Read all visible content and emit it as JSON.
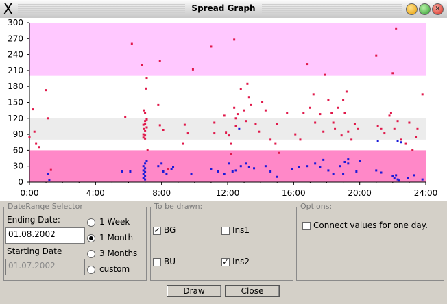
{
  "window": {
    "title": "Spread Graph",
    "logo": "X",
    "controls": [
      "minimize-icon",
      "maximize-icon",
      "close-icon"
    ]
  },
  "chart_data": {
    "type": "scatter",
    "title": "",
    "xlabel": "",
    "ylabel": "",
    "xlim": [
      0,
      24
    ],
    "ylim": [
      0,
      300
    ],
    "x_ticks": [
      "0:00",
      "4:00",
      "8:00",
      "12:00",
      "16:00",
      "20:00",
      "24:00"
    ],
    "y_ticks": [
      "0",
      "30",
      "60",
      "90",
      "120",
      "150",
      "180",
      "210",
      "240",
      "270",
      "300"
    ],
    "bands": [
      {
        "from": 200,
        "to": 300,
        "color": "#ffc8ff"
      },
      {
        "from": 80,
        "to": 120,
        "color": "#ececec"
      },
      {
        "from": 0,
        "to": 60,
        "color": "#ff88c8"
      }
    ],
    "series": [
      {
        "color": "#e0184a",
        "points": [
          [
            0.0,
            85
          ],
          [
            0.2,
            137
          ],
          [
            0.3,
            95
          ],
          [
            0.4,
            72
          ],
          [
            0.6,
            66
          ],
          [
            1.0,
            173
          ],
          [
            1.1,
            120
          ],
          [
            1.3,
            23
          ],
          [
            5.8,
            123
          ],
          [
            6.2,
            260
          ],
          [
            6.8,
            220
          ],
          [
            6.9,
            108
          ],
          [
            6.9,
            90
          ],
          [
            6.9,
            84
          ],
          [
            6.95,
            100
          ],
          [
            6.95,
            135
          ],
          [
            7.0,
            130
          ],
          [
            7.0,
            115
          ],
          [
            7.0,
            110
          ],
          [
            7.0,
            96
          ],
          [
            7.0,
            88
          ],
          [
            7.0,
            82
          ],
          [
            7.05,
            176
          ],
          [
            7.1,
            195
          ],
          [
            7.1,
            118
          ],
          [
            7.1,
            103
          ],
          [
            7.15,
            60
          ],
          [
            7.8,
            145
          ],
          [
            7.9,
            228
          ],
          [
            7.9,
            107
          ],
          [
            8.1,
            98
          ],
          [
            8.4,
            25
          ],
          [
            9.3,
            72
          ],
          [
            9.4,
            108
          ],
          [
            9.6,
            92
          ],
          [
            9.9,
            212
          ],
          [
            11.0,
            255
          ],
          [
            11.2,
            112
          ],
          [
            11.2,
            92
          ],
          [
            11.8,
            125
          ],
          [
            11.9,
            93
          ],
          [
            12.1,
            88
          ],
          [
            12.2,
            72
          ],
          [
            12.2,
            53
          ],
          [
            12.4,
            268
          ],
          [
            12.4,
            140
          ],
          [
            12.5,
            120
          ],
          [
            12.5,
            105
          ],
          [
            12.6,
            128
          ],
          [
            12.8,
            175
          ],
          [
            13.0,
            135
          ],
          [
            13.1,
            115
          ],
          [
            13.2,
            185
          ],
          [
            13.3,
            160
          ],
          [
            13.4,
            145
          ],
          [
            13.7,
            110
          ],
          [
            13.9,
            95
          ],
          [
            14.1,
            150
          ],
          [
            14.3,
            135
          ],
          [
            14.6,
            80
          ],
          [
            14.9,
            72
          ],
          [
            15.0,
            110
          ],
          [
            15.1,
            55
          ],
          [
            15.6,
            130
          ],
          [
            16.1,
            90
          ],
          [
            16.4,
            80
          ],
          [
            16.6,
            130
          ],
          [
            16.8,
            222
          ],
          [
            17.0,
            140
          ],
          [
            17.2,
            165
          ],
          [
            17.3,
            112
          ],
          [
            17.6,
            128
          ],
          [
            17.8,
            95
          ],
          [
            17.9,
            202
          ],
          [
            18.1,
            155
          ],
          [
            18.3,
            130
          ],
          [
            18.4,
            112
          ],
          [
            18.5,
            100
          ],
          [
            18.7,
            140
          ],
          [
            18.9,
            88
          ],
          [
            19.0,
            155
          ],
          [
            19.1,
            130
          ],
          [
            19.2,
            170
          ],
          [
            19.3,
            95
          ],
          [
            19.5,
            80
          ],
          [
            19.7,
            110
          ],
          [
            19.9,
            100
          ],
          [
            21.0,
            238
          ],
          [
            21.1,
            105
          ],
          [
            21.3,
            100
          ],
          [
            21.5,
            92
          ],
          [
            21.8,
            125
          ],
          [
            21.9,
            130
          ],
          [
            22.0,
            205
          ],
          [
            22.1,
            100
          ],
          [
            22.2,
            288
          ],
          [
            22.3,
            115
          ],
          [
            22.5,
            80
          ],
          [
            22.8,
            72
          ],
          [
            23.0,
            112
          ],
          [
            23.2,
            60
          ],
          [
            23.4,
            85
          ],
          [
            23.5,
            100
          ],
          [
            23.8,
            165
          ]
        ]
      },
      {
        "color": "#1a1ad8",
        "points": [
          [
            1.1,
            15
          ],
          [
            1.2,
            4
          ],
          [
            5.6,
            20
          ],
          [
            6.1,
            20
          ],
          [
            6.9,
            30
          ],
          [
            6.9,
            22
          ],
          [
            6.9,
            15
          ],
          [
            6.9,
            8
          ],
          [
            7.0,
            35
          ],
          [
            7.0,
            26
          ],
          [
            7.0,
            19
          ],
          [
            7.0,
            12
          ],
          [
            7.0,
            5
          ],
          [
            7.1,
            40
          ],
          [
            7.8,
            30
          ],
          [
            8.0,
            35
          ],
          [
            8.1,
            20
          ],
          [
            8.3,
            15
          ],
          [
            8.6,
            25
          ],
          [
            8.7,
            28
          ],
          [
            9.8,
            15
          ],
          [
            11.0,
            25
          ],
          [
            11.4,
            20
          ],
          [
            11.8,
            15
          ],
          [
            12.1,
            35
          ],
          [
            12.3,
            20
          ],
          [
            12.5,
            22
          ],
          [
            12.8,
            30
          ],
          [
            13.1,
            35
          ],
          [
            13.3,
            28
          ],
          [
            13.6,
            26
          ],
          [
            14.3,
            30
          ],
          [
            14.6,
            20
          ],
          [
            15.0,
            10
          ],
          [
            15.9,
            25
          ],
          [
            16.3,
            28
          ],
          [
            16.8,
            30
          ],
          [
            17.3,
            35
          ],
          [
            17.6,
            28
          ],
          [
            17.8,
            42
          ],
          [
            18.1,
            22
          ],
          [
            18.4,
            15
          ],
          [
            18.8,
            30
          ],
          [
            19.0,
            15
          ],
          [
            19.1,
            38
          ],
          [
            19.3,
            35
          ],
          [
            19.8,
            20
          ],
          [
            20.0,
            40
          ],
          [
            12.7,
            100
          ],
          [
            19.3,
            43
          ],
          [
            21.1,
            77
          ],
          [
            22.0,
            11
          ],
          [
            22.1,
            7
          ],
          [
            22.2,
            13
          ],
          [
            22.3,
            5
          ],
          [
            22.4,
            3
          ],
          [
            22.9,
            8
          ],
          [
            23.3,
            13
          ],
          [
            23.8,
            5
          ],
          [
            21.0,
            22
          ],
          [
            21.3,
            18
          ],
          [
            22.5,
            75
          ],
          [
            22.3,
            77
          ]
        ]
      }
    ]
  },
  "date_range": {
    "legend": "DateRange Selector",
    "ending_label": "Ending Date:",
    "ending_value": "01.08.2002",
    "starting_label": "Starting Date",
    "starting_value": "01.07.2002",
    "options": [
      {
        "label": "1 Week",
        "selected": false
      },
      {
        "label": "1 Month",
        "selected": true
      },
      {
        "label": "3 Months",
        "selected": false
      },
      {
        "label": "custom",
        "selected": false
      }
    ]
  },
  "to_be_drawn": {
    "legend": "To be drawn:",
    "items": [
      {
        "label": "BG",
        "checked": true
      },
      {
        "label": "Ins1",
        "checked": false
      },
      {
        "label": "BU",
        "checked": false
      },
      {
        "label": "Ins2",
        "checked": true
      }
    ]
  },
  "options": {
    "legend": "Options:",
    "connect_label": "Connect values for one day.",
    "connect_checked": false
  },
  "buttons": {
    "draw": "Draw",
    "close": "Close"
  }
}
